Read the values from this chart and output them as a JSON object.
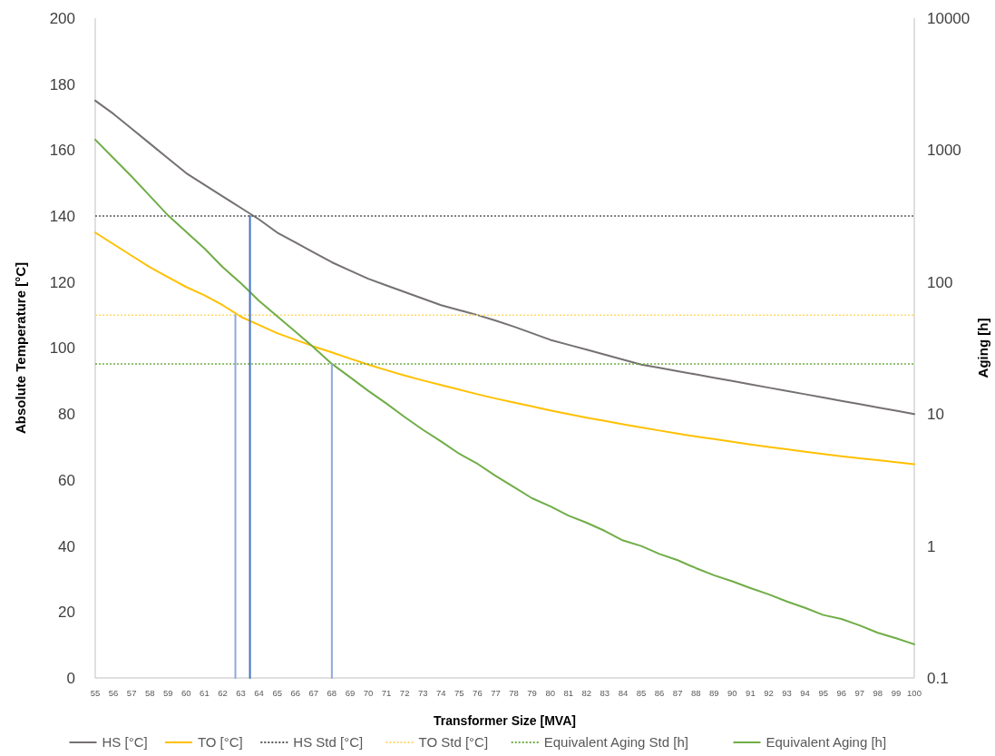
{
  "chart_data": {
    "type": "line",
    "xlabel": "Transformer Size [MVA]",
    "ylabel": "Absolute Temperature [°C]",
    "y2label": "Aging [h]",
    "x": [
      55,
      56,
      57,
      58,
      59,
      60,
      61,
      62,
      63,
      64,
      65,
      66,
      67,
      68,
      69,
      70,
      71,
      72,
      73,
      74,
      75,
      76,
      77,
      78,
      79,
      80,
      81,
      82,
      83,
      84,
      85,
      86,
      87,
      88,
      89,
      90,
      91,
      92,
      93,
      94,
      95,
      96,
      97,
      98,
      99,
      100
    ],
    "xlim": [
      55,
      100
    ],
    "xticks": [
      55,
      56,
      57,
      58,
      59,
      60,
      61,
      62,
      63,
      64,
      65,
      66,
      67,
      68,
      69,
      70,
      71,
      72,
      73,
      74,
      75,
      76,
      77,
      78,
      79,
      80,
      81,
      82,
      83,
      84,
      85,
      86,
      87,
      88,
      89,
      90,
      91,
      92,
      93,
      94,
      95,
      96,
      97,
      98,
      99,
      100
    ],
    "ylim": [
      0,
      200
    ],
    "yticks": [
      0,
      20,
      40,
      60,
      80,
      100,
      120,
      140,
      160,
      180,
      200
    ],
    "y2lim": [
      0.1,
      10000
    ],
    "y2ticks": [
      0.1,
      1,
      10,
      100,
      1000,
      10000
    ],
    "log": "y2",
    "legend": "bottom",
    "series": [
      {
        "name": "HS [°C]",
        "color": "#767171",
        "line_style": "solid",
        "values": [
          175,
          171,
          166.5,
          162,
          157.5,
          153,
          149.5,
          146,
          142.5,
          139,
          135,
          132,
          129,
          126,
          123.5,
          121,
          119,
          117,
          115,
          113,
          111.5,
          110,
          108.3,
          106.5,
          104.5,
          102.5,
          101,
          99.5,
          98,
          96.5,
          95,
          94,
          93,
          92,
          91,
          90,
          89,
          88,
          87,
          86,
          85,
          84,
          83,
          82,
          81,
          80
        ]
      },
      {
        "name": "TO [°C]",
        "color": "#ffc000",
        "line_style": "solid",
        "values": [
          135,
          131.5,
          128,
          124.5,
          121.5,
          118.5,
          116,
          113,
          109.5,
          107,
          104.5,
          102.5,
          100.5,
          98.7,
          96.8,
          95,
          93.3,
          91.7,
          90.2,
          88.8,
          87.4,
          86,
          84.7,
          83.5,
          82.3,
          81.1,
          80,
          78.9,
          77.9,
          76.9,
          75.9,
          75,
          74.1,
          73.2,
          72.4,
          71.6,
          70.8,
          70,
          69.3,
          68.6,
          67.9,
          67.2,
          66.6,
          66,
          65.4,
          64.8
        ]
      },
      {
        "name": "HS Std [°C]",
        "color": "#595959",
        "line_style": "dotted",
        "x": [
          55,
          100
        ],
        "values": [
          140,
          140
        ]
      },
      {
        "name": "TO Std [°C]",
        "color": "#ffd966",
        "line_style": "dotted",
        "x": [
          55,
          100
        ],
        "values": [
          110,
          110
        ]
      },
      {
        "name": "Equivalent Aging Std [h]",
        "color": "#70ad47",
        "line_style": "dotted",
        "axis": "y2",
        "x": [
          55,
          100
        ],
        "values": [
          24,
          24
        ]
      },
      {
        "name": "Equivalent Aging [h]",
        "color": "#70ad47",
        "line_style": "solid",
        "axis": "y2",
        "values": [
          1200,
          870,
          630,
          450,
          320,
          240,
          180,
          130,
          98,
          72,
          55,
          42,
          32,
          24,
          19,
          15,
          12,
          9.5,
          7.6,
          6.2,
          5.0,
          4.2,
          3.4,
          2.8,
          2.3,
          2.0,
          1.7,
          1.5,
          1.3,
          1.1,
          1.0,
          0.87,
          0.78,
          0.68,
          0.6,
          0.54,
          0.48,
          0.43,
          0.38,
          0.34,
          0.3,
          0.28,
          0.25,
          0.22,
          0.2,
          0.18
        ]
      },
      {
        "color": "#8faadc",
        "line_style": "solid",
        "x": [
          62.7,
          62.7
        ],
        "values": [
          0,
          110
        ]
      },
      {
        "color": "#4472c4",
        "line_style": "solid",
        "x": [
          63.5,
          63.5
        ],
        "values": [
          0,
          140
        ]
      },
      {
        "color": "#8faadc",
        "line_style": "solid",
        "x": [
          68,
          68
        ],
        "values": [
          0,
          95
        ]
      }
    ]
  }
}
